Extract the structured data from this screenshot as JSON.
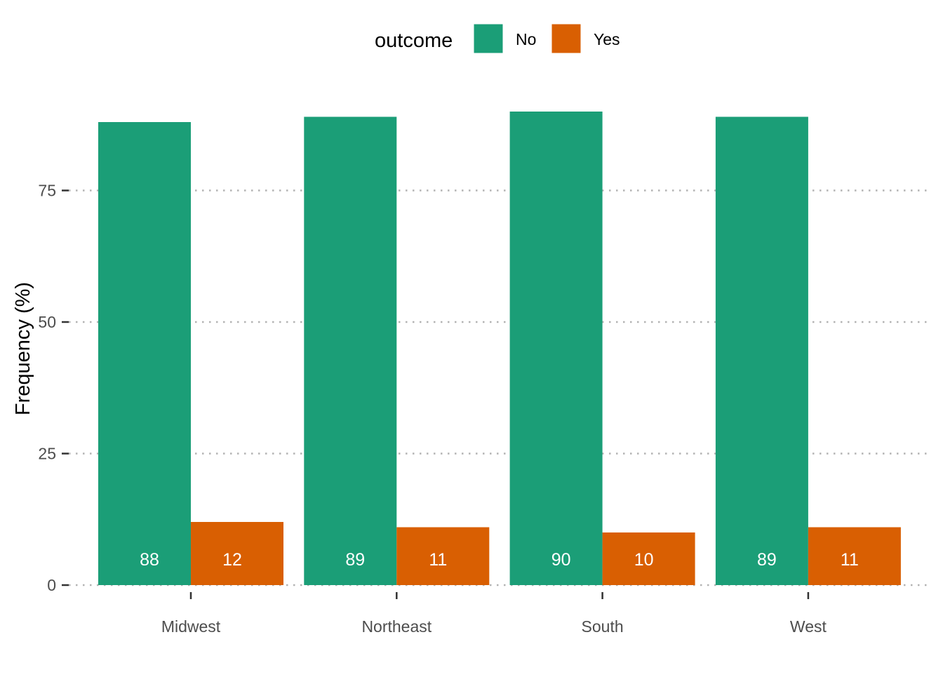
{
  "chart_data": {
    "type": "bar",
    "categories": [
      "Midwest",
      "Northeast",
      "South",
      "West"
    ],
    "series": [
      {
        "name": "No",
        "values": [
          88,
          89,
          90,
          89
        ],
        "labels": [
          "88",
          "89",
          "90",
          "89"
        ],
        "color": "#1B9E77"
      },
      {
        "name": "Yes",
        "values": [
          12,
          11,
          10,
          11
        ],
        "labels": [
          "12",
          "11",
          "10",
          "11"
        ],
        "color": "#D95F02"
      }
    ],
    "ylabel": "Frequency (%)",
    "xlabel": "",
    "ylim": [
      0,
      90
    ],
    "yticks": [
      0,
      25,
      50,
      75
    ],
    "ytick_labels": [
      "0",
      "25",
      "50",
      "75"
    ],
    "legend": {
      "title": "outcome",
      "position": "top"
    },
    "grid": "horizontal dotted"
  }
}
